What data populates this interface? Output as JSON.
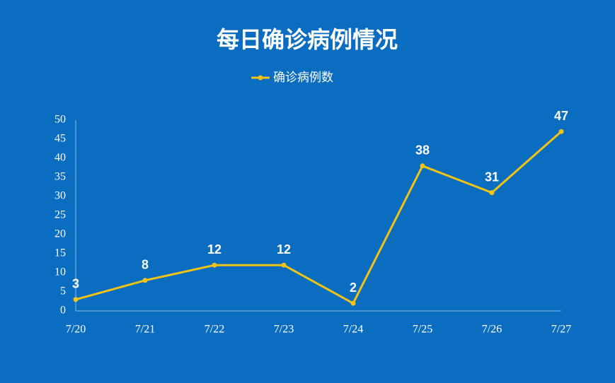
{
  "chart_data": {
    "type": "line",
    "title": "每日确诊病例情况",
    "categories": [
      "7/20",
      "7/21",
      "7/22",
      "7/23",
      "7/24",
      "7/25",
      "7/26",
      "7/27"
    ],
    "series": [
      {
        "name": "确诊病例数",
        "color": "#f2c314",
        "values": [
          3,
          8,
          12,
          12,
          2,
          38,
          31,
          47
        ]
      }
    ],
    "ylim": [
      0,
      50
    ],
    "yticks": [
      0,
      5,
      10,
      15,
      20,
      25,
      30,
      35,
      40,
      45,
      50
    ],
    "grid": false,
    "legend": "top"
  }
}
